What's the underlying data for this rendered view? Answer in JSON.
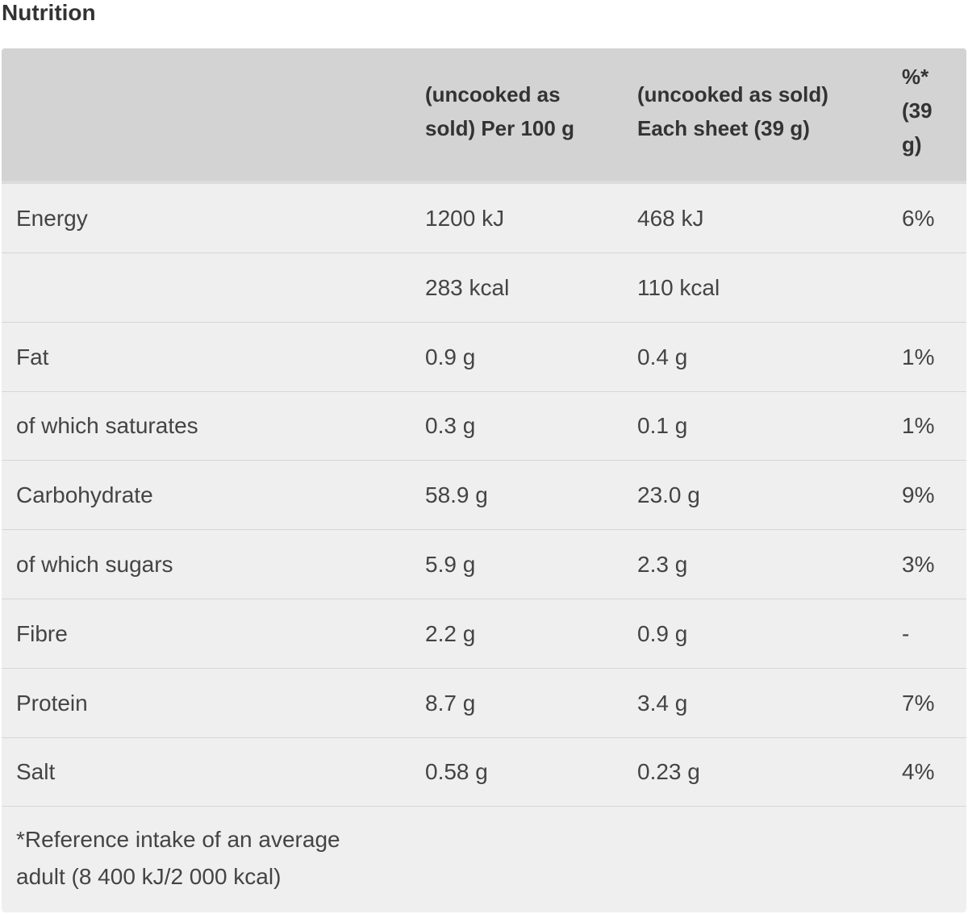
{
  "title": "Nutrition",
  "table": {
    "header": [
      "(uncooked as sold) Per 100 g",
      "(uncooked as sold) Each sheet (39 g)",
      "%* (39 g)"
    ],
    "rows": [
      [
        "Energy",
        "1200 kJ",
        "468 kJ",
        "6%"
      ],
      [
        null,
        "283 kcal",
        "110 kcal",
        null
      ],
      [
        "Fat",
        "0.9 g",
        "0.4 g",
        "1%"
      ],
      [
        "of which saturates",
        "0.3 g",
        "0.1 g",
        "1%"
      ],
      [
        "Carbohydrate",
        "58.9 g",
        "23.0 g",
        "9%"
      ],
      [
        "of which sugars",
        "5.9 g",
        "2.3 g",
        "3%"
      ],
      [
        "Fibre",
        "2.2 g",
        "0.9 g",
        "-"
      ],
      [
        "Protein",
        "8.7 g",
        "3.4 g",
        "7%"
      ],
      [
        "Salt",
        "0.58 g",
        "0.23 g",
        "4%"
      ]
    ],
    "footnote": "*Reference intake of an average adult (8 400 kJ/2 000 kcal)"
  }
}
